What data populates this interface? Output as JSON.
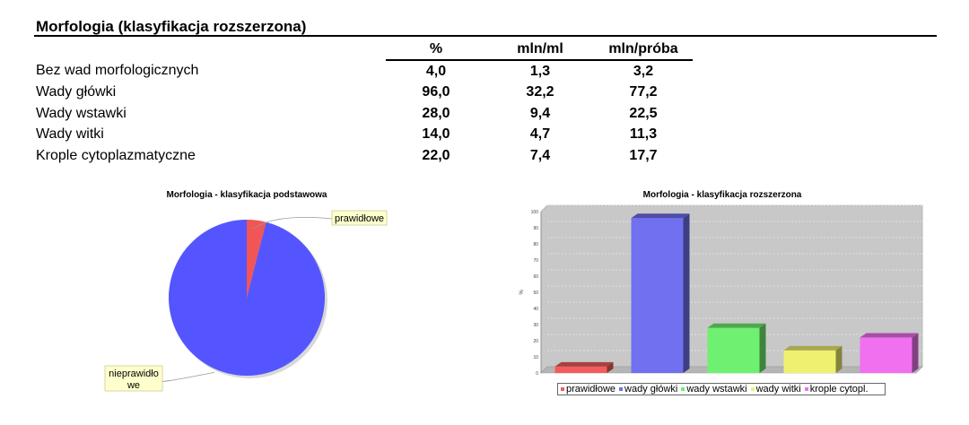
{
  "section_title": "Morfologia (klasyfikacja rozszerzona)",
  "table": {
    "headers": [
      "%",
      "mln/ml",
      "mln/próba"
    ],
    "rows": [
      {
        "label": "Bez wad morfologicznych",
        "values": [
          "4,0",
          "1,3",
          "3,2"
        ]
      },
      {
        "label": "Wady główki",
        "values": [
          "96,0",
          "32,2",
          "77,2"
        ]
      },
      {
        "label": "Wady wstawki",
        "values": [
          "28,0",
          "9,4",
          "22,5"
        ]
      },
      {
        "label": "Wady witki",
        "values": [
          "14,0",
          "4,7",
          "11,3"
        ]
      },
      {
        "label": "Krople cytoplazmatyczne",
        "values": [
          "22,0",
          "7,4",
          "17,7"
        ]
      }
    ]
  },
  "chart_data": [
    {
      "type": "pie",
      "title": "Morfologia - klasyfikacja podstawowa",
      "categories": [
        "prawidłowe",
        "nieprawidło\nwe"
      ],
      "values": [
        4,
        96
      ],
      "colors": [
        "#f25555",
        "#5555ff"
      ],
      "label_lines": [
        "prawidłowe",
        "nieprawidło",
        "we"
      ]
    },
    {
      "type": "bar",
      "title": "Morfologia - klasyfikacja rozszerzona",
      "categories": [
        "prawidłowe",
        "wady główki",
        "wady wstawki",
        "wady witki",
        "krople cytopl."
      ],
      "values": [
        4,
        96,
        28,
        14,
        22
      ],
      "colors": [
        "#f25c5c",
        "#7070f0",
        "#70f070",
        "#f0f070",
        "#f070f0"
      ],
      "ylabel": "%",
      "ylim": [
        0,
        100
      ],
      "yticks": [
        0,
        10,
        20,
        30,
        40,
        50,
        60,
        70,
        80,
        90,
        100
      ],
      "grid": true,
      "legend_position": "bottom"
    }
  ]
}
